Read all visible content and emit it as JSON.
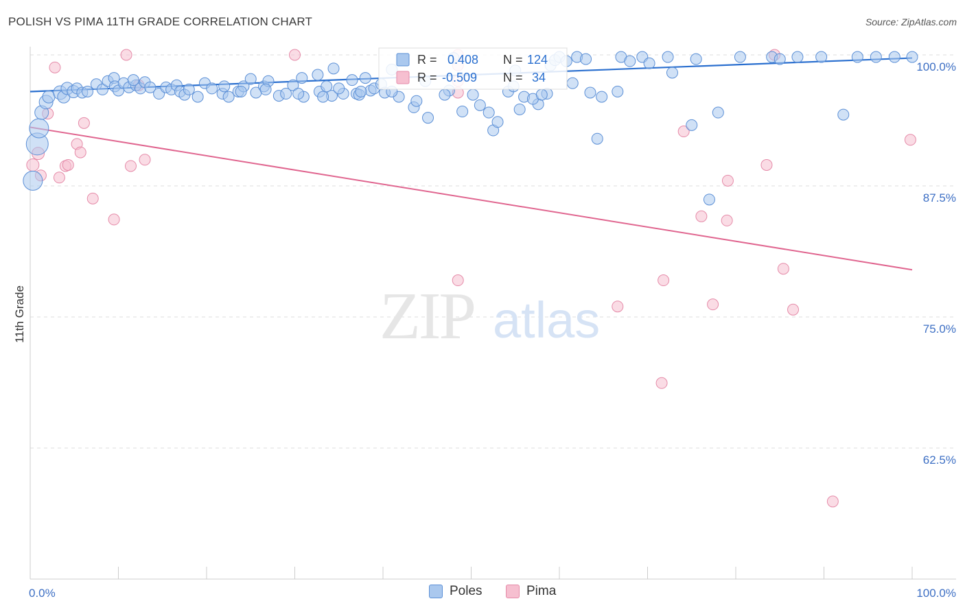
{
  "title": "POLISH VS PIMA 11TH GRADE CORRELATION CHART",
  "source": "Source: ZipAtlas.com",
  "watermark": {
    "zip": "ZIP",
    "atlas": "atlas"
  },
  "colors": {
    "poles_fill": "#aac8ee",
    "poles_stroke": "#5b8fd6",
    "poles_line": "#2a6fcf",
    "pima_fill": "#f6bfd0",
    "pima_stroke": "#e58aa8",
    "pima_line": "#e0658f",
    "axis_text": "#3d6fc4",
    "grid": "#dddddd"
  },
  "legend_box": {
    "poles": {
      "r_label": "R =",
      "r_value": "0.408",
      "n_label": "N =",
      "n_value": "124"
    },
    "pima": {
      "r_label": "R =",
      "r_value": "-0.509",
      "n_label": "N =",
      "n_value": "34"
    }
  },
  "chart_data": {
    "type": "scatter",
    "title": "POLISH VS PIMA 11TH GRADE CORRELATION CHART",
    "xlabel": "",
    "ylabel": "11th Grade",
    "xlim": [
      0,
      100
    ],
    "ylim": [
      50,
      100
    ],
    "x_tick_labels": [
      "0.0%",
      "100.0%"
    ],
    "y_tick_labels": [
      "100.0%",
      "87.5%",
      "75.0%",
      "62.5%"
    ],
    "y_tick_values": [
      100,
      87.5,
      75,
      62.5
    ],
    "grid": true,
    "legend_position": "top-center",
    "series": [
      {
        "name": "Poles",
        "r": 0.408,
        "n": 124,
        "trend": {
          "x": [
            0,
            100
          ],
          "y": [
            96.5,
            99.7
          ]
        },
        "points": [
          [
            0.3,
            88.0,
            14
          ],
          [
            0.8,
            91.5,
            16
          ],
          [
            1.0,
            93.0,
            14
          ],
          [
            1.3,
            94.5,
            10
          ],
          [
            1.8,
            95.5,
            10
          ],
          [
            2.1,
            96.0,
            9
          ],
          [
            3.4,
            96.4,
            10
          ],
          [
            3.8,
            96.0,
            9
          ],
          [
            4.2,
            96.8,
            9
          ],
          [
            4.9,
            96.5,
            9
          ],
          [
            5.3,
            96.8,
            8
          ],
          [
            5.9,
            96.4,
            8
          ],
          [
            6.5,
            96.5,
            8
          ],
          [
            7.5,
            97.2,
            8
          ],
          [
            8.2,
            96.7,
            8
          ],
          [
            8.8,
            97.5,
            8
          ],
          [
            9.5,
            97.8,
            8
          ],
          [
            9.6,
            97.0,
            8
          ],
          [
            10.0,
            96.6,
            8
          ],
          [
            10.6,
            97.3,
            8
          ],
          [
            11.2,
            96.9,
            8
          ],
          [
            12.0,
            97.1,
            8
          ],
          [
            12.5,
            96.8,
            8
          ],
          [
            13.0,
            97.4,
            8
          ],
          [
            14.6,
            96.3,
            8
          ],
          [
            15.4,
            96.9,
            8
          ],
          [
            16.0,
            96.7,
            8
          ],
          [
            16.6,
            97.1,
            8
          ],
          [
            17.0,
            96.5,
            8
          ],
          [
            17.5,
            96.2,
            8
          ],
          [
            18.0,
            96.7,
            8
          ],
          [
            19.0,
            96.0,
            8
          ],
          [
            19.8,
            97.3,
            8
          ],
          [
            20.6,
            96.8,
            8
          ],
          [
            21.8,
            96.3,
            8
          ],
          [
            22.5,
            96.0,
            8
          ],
          [
            23.6,
            96.5,
            8
          ],
          [
            24.2,
            97.0,
            8
          ],
          [
            25.0,
            97.7,
            8
          ],
          [
            25.6,
            96.4,
            8
          ],
          [
            26.5,
            97.0,
            8
          ],
          [
            27.0,
            97.5,
            8
          ],
          [
            28.2,
            96.1,
            8
          ],
          [
            29.0,
            96.3,
            8
          ],
          [
            29.8,
            97.1,
            8
          ],
          [
            30.8,
            97.8,
            8
          ],
          [
            31.0,
            96.0,
            8
          ],
          [
            32.6,
            98.1,
            8
          ],
          [
            32.8,
            96.5,
            8
          ],
          [
            33.6,
            97.0,
            8
          ],
          [
            34.2,
            96.1,
            8
          ],
          [
            34.4,
            98.7,
            8
          ],
          [
            35.5,
            96.3,
            8
          ],
          [
            36.5,
            97.6,
            8
          ],
          [
            37.0,
            96.3,
            8
          ],
          [
            38.0,
            97.8,
            8
          ],
          [
            37.3,
            96.2,
            8
          ],
          [
            38.6,
            96.6,
            8
          ],
          [
            39.0,
            96.8,
            8
          ],
          [
            39.8,
            97.2,
            8
          ],
          [
            40.2,
            96.4,
            8
          ],
          [
            41.8,
            96.0,
            8
          ],
          [
            41.0,
            98.6,
            8
          ],
          [
            43.5,
            95.0,
            8
          ],
          [
            43.8,
            95.6,
            8
          ],
          [
            44.8,
            97.5,
            8
          ],
          [
            45.1,
            94.0,
            8
          ],
          [
            47.5,
            96.6,
            8
          ],
          [
            48.0,
            99.7,
            8
          ],
          [
            49.0,
            94.6,
            8
          ],
          [
            50.2,
            96.2,
            8
          ],
          [
            52.0,
            94.5,
            8
          ],
          [
            52.5,
            92.8,
            8
          ],
          [
            54.2,
            96.5,
            8
          ],
          [
            54.8,
            97.0,
            8
          ],
          [
            55.0,
            98.5,
            8
          ],
          [
            56.0,
            96.0,
            8
          ],
          [
            57.6,
            95.3,
            8
          ],
          [
            58.6,
            96.3,
            8
          ],
          [
            59.0,
            99.0,
            8
          ],
          [
            59.5,
            99.5,
            8
          ],
          [
            60.0,
            99.8,
            8
          ],
          [
            60.8,
            99.4,
            8
          ],
          [
            62.0,
            99.8,
            8
          ],
          [
            63.0,
            99.6,
            8
          ],
          [
            64.3,
            92.0,
            8
          ],
          [
            64.8,
            96.0,
            8
          ],
          [
            66.6,
            96.5,
            8
          ],
          [
            67.0,
            99.8,
            8
          ],
          [
            68.0,
            99.4,
            8
          ],
          [
            69.4,
            99.8,
            8
          ],
          [
            70.2,
            99.2,
            8
          ],
          [
            72.3,
            99.8,
            8
          ],
          [
            72.8,
            98.3,
            8
          ],
          [
            75.0,
            93.3,
            8
          ],
          [
            75.5,
            99.6,
            8
          ],
          [
            77.0,
            86.2,
            8
          ],
          [
            78.0,
            94.5,
            8
          ],
          [
            80.5,
            99.8,
            8
          ],
          [
            84.1,
            99.8,
            8
          ],
          [
            85.0,
            99.6,
            8
          ],
          [
            87.0,
            99.8,
            8
          ],
          [
            89.7,
            99.8,
            8
          ],
          [
            92.2,
            94.3,
            8
          ],
          [
            93.8,
            99.8,
            8
          ],
          [
            95.9,
            99.8,
            8
          ],
          [
            98.0,
            99.8,
            8
          ],
          [
            100.0,
            99.8,
            8
          ],
          [
            11.7,
            97.6,
            8
          ],
          [
            13.6,
            96.9,
            8
          ],
          [
            22.0,
            97.0,
            8
          ],
          [
            23.9,
            96.5,
            8
          ],
          [
            26.7,
            96.7,
            8
          ],
          [
            30.4,
            96.3,
            8
          ],
          [
            33.2,
            96.0,
            8
          ],
          [
            35.0,
            96.8,
            8
          ],
          [
            37.5,
            96.5,
            8
          ],
          [
            41.0,
            96.5,
            8
          ],
          [
            47.0,
            96.2,
            8
          ],
          [
            51.0,
            95.2,
            8
          ],
          [
            53.0,
            93.6,
            8
          ],
          [
            55.5,
            94.8,
            8
          ],
          [
            57.0,
            95.8,
            8
          ],
          [
            58.0,
            96.2,
            8
          ],
          [
            61.5,
            97.3,
            8
          ],
          [
            63.5,
            96.4,
            8
          ]
        ]
      },
      {
        "name": "Pima",
        "r": -0.509,
        "n": 34,
        "trend": {
          "x": [
            0,
            100
          ],
          "y": [
            93.1,
            79.5
          ]
        },
        "points": [
          [
            0.3,
            89.5,
            9
          ],
          [
            0.9,
            90.6,
            9
          ],
          [
            1.2,
            88.5,
            8
          ],
          [
            2.0,
            94.4,
            8
          ],
          [
            2.8,
            98.8,
            8
          ],
          [
            3.3,
            88.3,
            8
          ],
          [
            4.0,
            89.4,
            8
          ],
          [
            4.3,
            89.5,
            8
          ],
          [
            5.3,
            91.5,
            8
          ],
          [
            5.7,
            90.7,
            8
          ],
          [
            6.1,
            93.5,
            8
          ],
          [
            7.1,
            86.3,
            8
          ],
          [
            9.5,
            84.3,
            8
          ],
          [
            10.9,
            100.0,
            8
          ],
          [
            11.4,
            89.4,
            8
          ],
          [
            12.3,
            97.1,
            8
          ],
          [
            13.0,
            90.0,
            8
          ],
          [
            30.0,
            100.0,
            8
          ],
          [
            48.5,
            100.0,
            8
          ],
          [
            48.5,
            99.0,
            8
          ],
          [
            48.5,
            97.5,
            8
          ],
          [
            48.5,
            96.4,
            8
          ],
          [
            48.5,
            78.5,
            8
          ],
          [
            66.6,
            76.0,
            8
          ],
          [
            71.6,
            68.7,
            8
          ],
          [
            71.8,
            78.5,
            8
          ],
          [
            74.1,
            92.7,
            8
          ],
          [
            76.1,
            84.6,
            8
          ],
          [
            77.4,
            76.2,
            8
          ],
          [
            79.1,
            88.0,
            8
          ],
          [
            79.0,
            84.2,
            8
          ],
          [
            83.5,
            89.5,
            8
          ],
          [
            85.4,
            79.6,
            8
          ],
          [
            86.5,
            75.7,
            8
          ],
          [
            91.0,
            57.4,
            8
          ],
          [
            99.8,
            91.9,
            8
          ],
          [
            84.4,
            100.0,
            8
          ]
        ]
      }
    ]
  },
  "bottom_legend": {
    "poles": "Poles",
    "pima": "Pima"
  }
}
